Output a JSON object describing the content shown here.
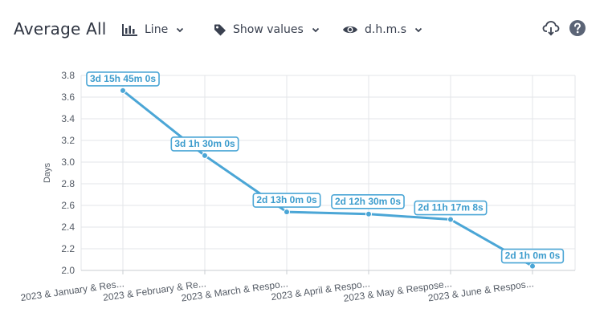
{
  "header": {
    "title": "Average All",
    "chart_type_label": "Line",
    "show_values_label": "Show values",
    "format_label": "d.h.m.s"
  },
  "icons": {
    "chart_type": "bar-chart-icon",
    "show_values": "tag-icon",
    "format": "eye-icon",
    "download": "cloud-download-icon",
    "help": "help-circle-icon"
  },
  "colors": {
    "series": "#4ba6d6",
    "label_text": "#3c9ccd",
    "grid": "#e3e5e8",
    "help_bg": "#5b6476"
  },
  "chart_data": {
    "type": "line",
    "ylabel": "Days",
    "ylim": [
      2.0,
      3.8
    ],
    "yticks": [
      2.0,
      2.2,
      2.4,
      2.6,
      2.8,
      3.0,
      3.2,
      3.4,
      3.6,
      3.8
    ],
    "categories": [
      "2023 & January & Res...",
      "2023 & February & Re...",
      "2023 & March & Respo...",
      "2023 & April & Respo...",
      "2023 & May & Respose...",
      "2023 & June & Respos..."
    ],
    "series": [
      {
        "values": [
          3.66,
          3.06,
          2.54,
          2.52,
          2.47,
          2.04
        ],
        "labels": [
          "3d 15h 45m 0s",
          "3d 1h 30m 0s",
          "2d 13h 0m 0s",
          "2d 12h 30m 0s",
          "2d 11h 17m 8s",
          "2d 1h 0m 0s"
        ]
      }
    ],
    "grid": true
  }
}
